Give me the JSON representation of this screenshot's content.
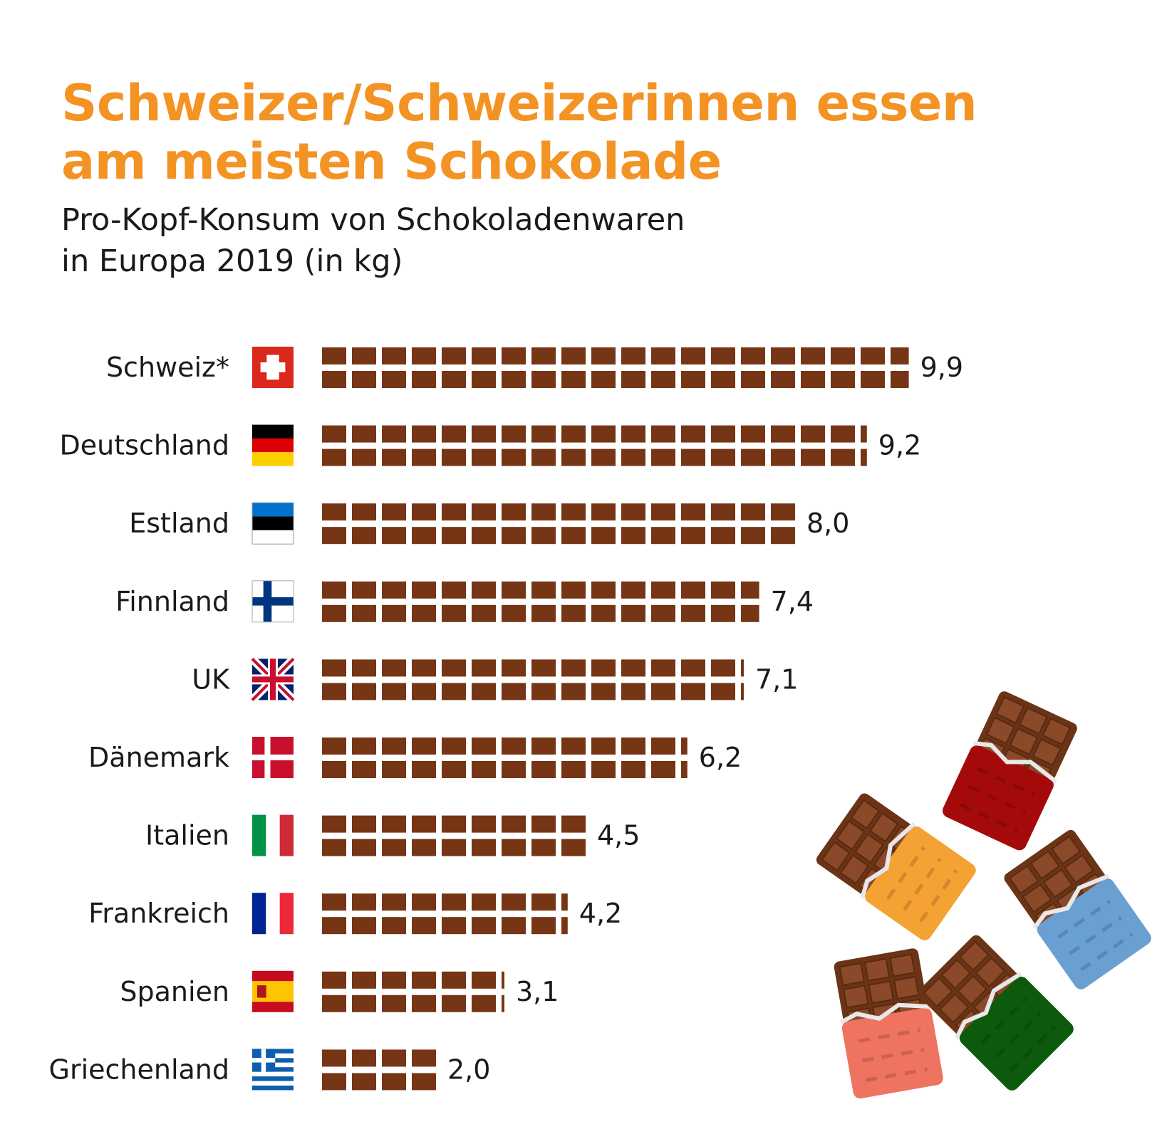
{
  "title_line1": "Schweizer/Schweizerinnen essen",
  "title_line2": "am meisten Schokolade",
  "subtitle_line1": "Pro-Kopf-Konsum von Schokoladenwaren",
  "subtitle_line2": "in Europa 2019 (in kg)",
  "colors": {
    "title": "#f39324",
    "bar": "#763514"
  },
  "chart_data": {
    "type": "bar",
    "orientation": "horizontal",
    "unit": "kg",
    "categories": [
      "Schweiz*",
      "Deutschland",
      "Estland",
      "Finnland",
      "UK",
      "Dänemark",
      "Italien",
      "Frankreich",
      "Spanien",
      "Griechenland"
    ],
    "values": [
      9.9,
      9.2,
      8.0,
      7.4,
      7.1,
      6.2,
      4.5,
      4.2,
      3.1,
      2.0
    ],
    "value_labels": [
      "9,9",
      "9,2",
      "8,0",
      "7,4",
      "7,1",
      "6,2",
      "4,5",
      "4,2",
      "3,1",
      "2,0"
    ],
    "flags": [
      "flag-switzerland-icon",
      "flag-germany-icon",
      "flag-estonia-icon",
      "flag-finland-icon",
      "flag-uk-icon",
      "flag-denmark-icon",
      "flag-italy-icon",
      "flag-france-icon",
      "flag-spain-icon",
      "flag-greece-icon"
    ],
    "bar_style": "chocolate pieces, 2 pieces per kg"
  },
  "decoration": {
    "wrapper_colors": [
      "#a50a0a",
      "#f4a234",
      "#6a9fd2",
      "#ee7360",
      "#0d5a0d"
    ]
  }
}
